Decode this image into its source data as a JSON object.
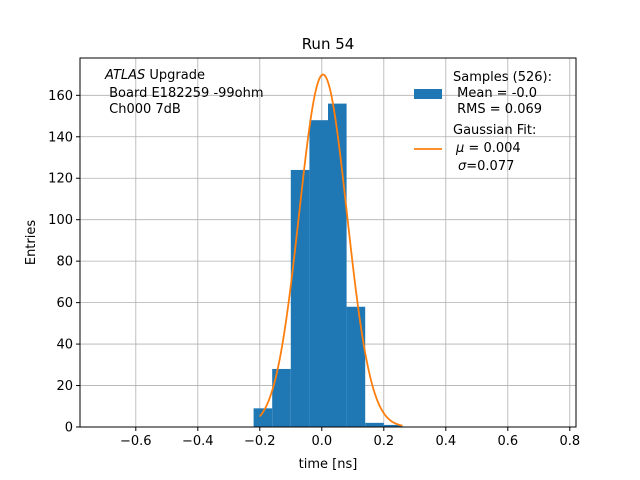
{
  "chart_data": {
    "type": "bar",
    "title": "Run 54",
    "xlabel": "time [ns]",
    "ylabel": "Entries",
    "xlim": [
      -0.78,
      0.82
    ],
    "ylim": [
      0,
      178
    ],
    "xticks": [
      -0.6,
      -0.4,
      -0.2,
      0.0,
      0.2,
      0.4,
      0.6,
      0.8
    ],
    "xtick_labels": [
      "−0.6",
      "−0.4",
      "−0.2",
      "0.0",
      "0.2",
      "0.4",
      "0.6",
      "0.8"
    ],
    "yticks": [
      0,
      20,
      40,
      60,
      80,
      100,
      120,
      140,
      160
    ],
    "ytick_labels": [
      "0",
      "20",
      "40",
      "60",
      "80",
      "100",
      "120",
      "140",
      "160"
    ],
    "grid": true,
    "bar_color": "#1f77b4",
    "fit_color": "#ff7f0e",
    "histogram": {
      "bin_edges": [
        -0.22,
        -0.16,
        -0.1,
        -0.04,
        0.02,
        0.08,
        0.14,
        0.2,
        0.26
      ],
      "counts": [
        9,
        28,
        124,
        148,
        156,
        58,
        2,
        1
      ]
    },
    "gaussian_fit": {
      "mu": 0.004,
      "sigma": 0.077,
      "amplitude": 170,
      "x_range": [
        -0.2,
        0.26
      ]
    },
    "annotations": {
      "atlas_italic": "ATLAS",
      "atlas_rest": " Upgrade",
      "board": " Board E182259 -99ohm",
      "channel": " Ch000 7dB"
    },
    "legend": {
      "placement": "top-right",
      "samples_title": "Samples (526):",
      "samples_mean": " Mean = -0.0",
      "samples_rms": " RMS = 0.069",
      "fit_title": "Gaussian Fit:",
      "fit_mu_symbol": "μ",
      "fit_mu_value": " = 0.004",
      "fit_sigma_symbol": "σ",
      "fit_sigma_value": "=0.077"
    }
  }
}
